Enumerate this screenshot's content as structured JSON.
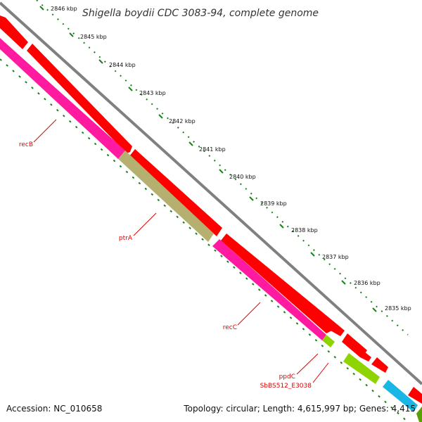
{
  "map": {
    "title": "Shigella boydii CDC 3083-94, complete genome",
    "accession": "Accession: NC_010658",
    "summary": "Topology: circular; Length: 4,615,997 bp; Genes: 4,415"
  },
  "ticks": [
    "2846 kbp",
    "2845 kbp",
    "2844 kbp",
    "2843 kbp",
    "2842 kbp",
    "2841 kbp",
    "2840 kbp",
    "2839 kbp",
    "2838 kbp",
    "2837 kbp",
    "2836 kbp",
    "2835 kbp"
  ],
  "genes": [
    "recB",
    "ptrA",
    "recC",
    "ppdC",
    "SbBS512_E3038"
  ],
  "colors": {
    "backbone": "#808080",
    "cds": "#ff0000",
    "gene_pink": "#ff1aa0",
    "gene_olive": "#b5b070",
    "gene_green": "#8fd400",
    "gene_blue": "#19b6e6",
    "tick_green": "#1a7f1a",
    "label_red": "#e00000"
  }
}
